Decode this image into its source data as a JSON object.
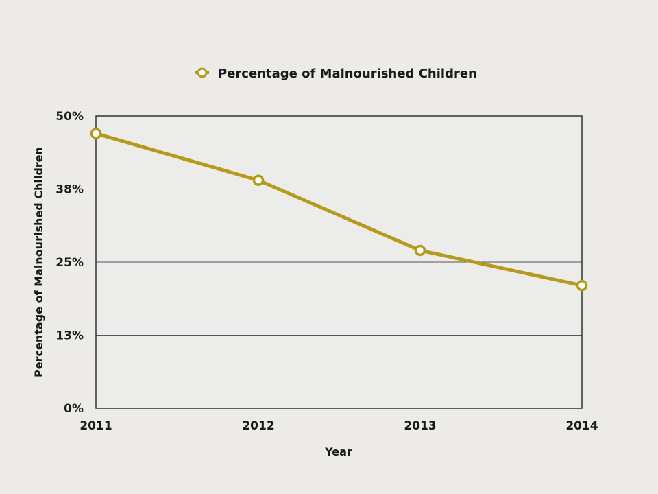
{
  "chart_data": {
    "type": "line",
    "title": "",
    "categories": [
      "2011",
      "2012",
      "2013",
      "2014"
    ],
    "series": [
      {
        "name": "Percentage of Malnourished Children",
        "values": [
          47,
          39,
          27,
          21
        ],
        "color": "#b59a1c"
      }
    ],
    "xlabel": "Year",
    "ylabel": "Percentage of Malnourished Children",
    "ylim": [
      0,
      50
    ],
    "yticks": [
      0,
      12.5,
      25,
      37.5,
      50
    ],
    "ytick_labels": [
      "0%",
      "13%",
      "25%",
      "38%",
      "50%"
    ],
    "grid": true,
    "legend_position": "top-center"
  }
}
